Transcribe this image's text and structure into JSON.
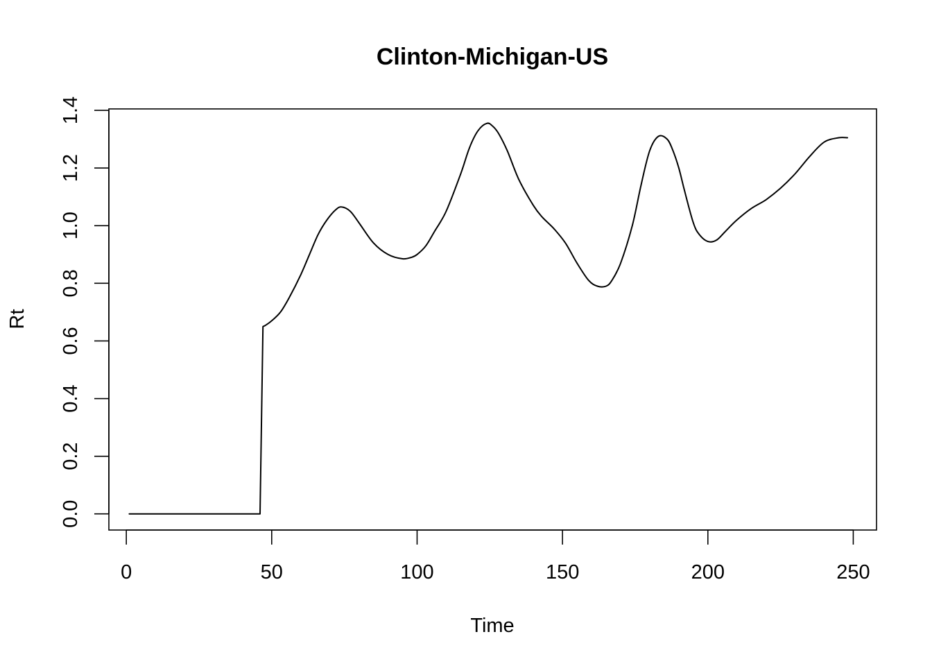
{
  "chart_data": {
    "type": "line",
    "title": "Clinton-Michigan-US",
    "xlabel": "Time",
    "ylabel": "Rt",
    "xlim": [
      -6,
      258
    ],
    "ylim": [
      -0.056,
      1.405
    ],
    "x_ticks": [
      0,
      50,
      100,
      150,
      200,
      250
    ],
    "y_ticks": [
      0.0,
      0.2,
      0.4,
      0.6,
      0.8,
      1.0,
      1.2,
      1.4
    ],
    "x_tick_labels": [
      "0",
      "50",
      "100",
      "150",
      "200",
      "250"
    ],
    "y_tick_labels": [
      "0.0",
      "0.2",
      "0.4",
      "0.6",
      "0.8",
      "1.0",
      "1.2",
      "1.4"
    ],
    "grid": false,
    "series": [
      {
        "x": [
          1,
          10,
          20,
          30,
          40,
          46,
          47,
          48,
          50,
          53,
          56,
          60,
          63,
          66,
          69,
          72,
          74,
          77,
          80,
          85,
          90,
          95,
          98,
          100,
          103,
          106,
          110,
          115,
          118,
          121,
          124,
          126,
          128,
          131,
          135,
          140,
          143,
          147,
          151,
          155,
          159,
          162,
          165,
          167,
          170,
          174,
          177,
          180,
          183,
          186,
          188,
          190,
          192,
          195,
          197,
          200,
          203,
          206,
          210,
          215,
          220,
          225,
          230,
          235,
          240,
          245,
          248
        ],
        "y": [
          0.0,
          0.0,
          0.0,
          0.0,
          0.0,
          0.0,
          0.65,
          0.655,
          0.67,
          0.7,
          0.75,
          0.83,
          0.9,
          0.97,
          1.02,
          1.055,
          1.065,
          1.05,
          1.01,
          0.94,
          0.9,
          0.885,
          0.89,
          0.9,
          0.93,
          0.98,
          1.05,
          1.18,
          1.27,
          1.33,
          1.355,
          1.345,
          1.32,
          1.26,
          1.16,
          1.07,
          1.03,
          0.99,
          0.94,
          0.87,
          0.81,
          0.79,
          0.79,
          0.81,
          0.87,
          1.0,
          1.14,
          1.26,
          1.31,
          1.3,
          1.26,
          1.2,
          1.12,
          1.01,
          0.97,
          0.945,
          0.95,
          0.98,
          1.02,
          1.06,
          1.09,
          1.13,
          1.18,
          1.24,
          1.29,
          1.305,
          1.305
        ]
      }
    ]
  }
}
